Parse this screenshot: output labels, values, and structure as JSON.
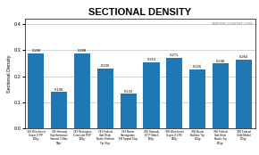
{
  "chart_data": {
    "type": "bar",
    "title": "SECTIONAL DENSITY",
    "ylabel": "Sectional Density",
    "categories": [
      "243 Winchester\nSuper-X PP\n100gr",
      "243 Hornady\nSuperformance\nVarmint V-Max\n58gr",
      "243 Remington\nCore-Lokt PSP\n100gr",
      "243 Federal\nVital-Shok\nNosler Ballistic\nTip 95gr",
      "243 Nosler\nVarmagedon\nFB Tipped 55gr",
      "308 Hornady\nETIP Match\n168gr",
      "308 Winchester\nSuper-X LRX\n180gr",
      "308 Nosler\nBallistic Tip\n150gr",
      "308 Federal\nVital-Shok\nNosler Tip\n165gr",
      "308 Federal\nGold Medal\n175gr"
    ],
    "values": [
      0.288,
      0.14,
      0.288,
      0.23,
      0.133,
      0.253,
      0.271,
      0.226,
      0.248,
      0.264
    ],
    "value_labels": [
      "0.288",
      "0.140",
      "0.288",
      "0.230",
      "0.133",
      "0.253",
      "0.271",
      "0.226",
      "0.248",
      "0.264"
    ],
    "data_labels": true,
    "ylim": [
      0,
      0.42
    ],
    "yticks": [
      {
        "value": 0,
        "label": "0.0"
      },
      0.1,
      0.2,
      0.3,
      0.4
    ],
    "grid": true,
    "annotations": [
      "SNIPERCOUNTRY.COM"
    ]
  }
}
